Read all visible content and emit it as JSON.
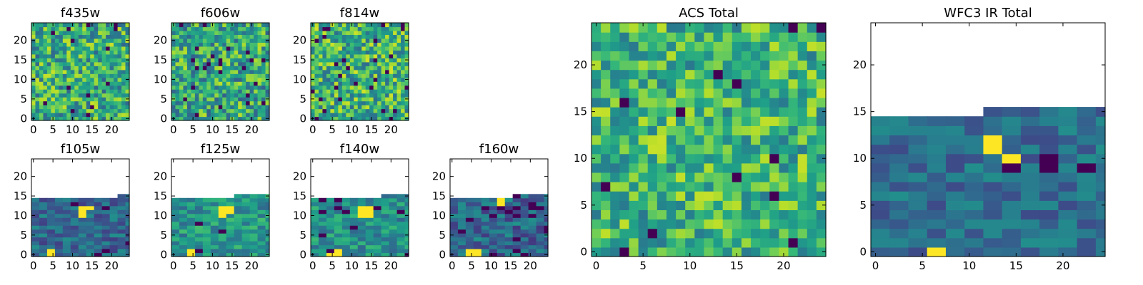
{
  "figure": {
    "colormap": "viridis"
  },
  "chart_data": [
    {
      "type": "heatmap",
      "title": "f435w",
      "xticks": [
        0,
        5,
        10,
        15,
        20
      ],
      "yticks": [
        0,
        5,
        10,
        15,
        20
      ],
      "xlim": [
        0,
        25
      ],
      "ylim": [
        0,
        25
      ],
      "data_rows": 25,
      "cols": 25,
      "cell": 1,
      "seed": 11,
      "mean": 0.62,
      "spread": 0.3,
      "dark_prob": 0.03
    },
    {
      "type": "heatmap",
      "title": "f606w",
      "xticks": [
        0,
        5,
        10,
        15,
        20
      ],
      "yticks": [
        0,
        5,
        10,
        15,
        20
      ],
      "xlim": [
        0,
        25
      ],
      "ylim": [
        0,
        25
      ],
      "data_rows": 25,
      "cols": 25,
      "cell": 1,
      "seed": 23,
      "mean": 0.6,
      "spread": 0.3,
      "dark_prob": 0.035
    },
    {
      "type": "heatmap",
      "title": "f814w",
      "xticks": [
        0,
        5,
        10,
        15,
        20
      ],
      "yticks": [
        0,
        5,
        10,
        15,
        20
      ],
      "xlim": [
        0,
        25
      ],
      "ylim": [
        0,
        25
      ],
      "data_rows": 25,
      "cols": 25,
      "cell": 1,
      "seed": 37,
      "mean": 0.64,
      "spread": 0.3,
      "dark_prob": 0.04
    },
    {
      "type": "heatmap",
      "title": "f105w",
      "xticks": [
        0,
        5,
        10,
        15,
        20
      ],
      "yticks": [
        0,
        5,
        10,
        15,
        20
      ],
      "xlim": [
        0,
        25
      ],
      "ylim": [
        0,
        25
      ],
      "data_rows": 15,
      "cols": 25,
      "cell": 2,
      "seed": 41,
      "mean": 0.34,
      "spread": 0.16,
      "dark_prob": 0.04,
      "step": [
        [
          21,
          1
        ]
      ],
      "hot": [
        [
          0,
          5
        ],
        [
          11,
          13
        ]
      ]
    },
    {
      "type": "heatmap",
      "title": "f125w",
      "xticks": [
        0,
        5,
        10,
        15,
        20
      ],
      "yticks": [
        0,
        5,
        10,
        15,
        20
      ],
      "xlim": [
        0,
        25
      ],
      "ylim": [
        0,
        25
      ],
      "data_rows": 15,
      "cols": 25,
      "cell": 2,
      "seed": 53,
      "mean": 0.52,
      "spread": 0.18,
      "dark_prob": 0.03,
      "step": [
        [
          15,
          1
        ],
        [
          23,
          1
        ]
      ],
      "hot": [
        [
          0,
          5
        ],
        [
          11,
          13
        ]
      ]
    },
    {
      "type": "heatmap",
      "title": "f140w",
      "xticks": [
        0,
        5,
        10,
        15,
        20
      ],
      "yticks": [
        0,
        5,
        10,
        15,
        20
      ],
      "xlim": [
        0,
        25
      ],
      "ylim": [
        0,
        25
      ],
      "data_rows": 15,
      "cols": 25,
      "cell": 2,
      "seed": 67,
      "mean": 0.5,
      "spread": 0.18,
      "dark_prob": 0.03,
      "step": [
        [
          17,
          1
        ]
      ],
      "hot": [
        [
          0,
          5
        ],
        [
          11,
          13
        ]
      ]
    },
    {
      "type": "heatmap",
      "title": "f160w",
      "xticks": [
        0,
        5,
        10,
        15,
        20
      ],
      "yticks": [
        0,
        5,
        10,
        15,
        20
      ],
      "xlim": [
        0,
        25
      ],
      "ylim": [
        0,
        25
      ],
      "data_rows": 15,
      "cols": 25,
      "cell": 2,
      "seed": 79,
      "mean": 0.34,
      "spread": 0.18,
      "dark_prob": 0.08,
      "step": [
        [
          15,
          1
        ]
      ],
      "hot": [
        [
          0,
          5
        ],
        [
          13,
          13
        ]
      ]
    },
    {
      "type": "heatmap",
      "title": "ACS Total",
      "xticks": [
        0,
        5,
        10,
        15,
        20
      ],
      "yticks": [
        0,
        5,
        10,
        15,
        20
      ],
      "xlim": [
        0,
        25
      ],
      "ylim": [
        0,
        25
      ],
      "data_rows": 25,
      "cols": 25,
      "cell": 1,
      "seed": 91,
      "mean": 0.66,
      "spread": 0.26,
      "dark_prob": 0.025
    },
    {
      "type": "heatmap",
      "title": "WFC3 IR Total",
      "xticks": [
        0,
        5,
        10,
        15,
        20
      ],
      "yticks": [
        0,
        5,
        10,
        15,
        20
      ],
      "xlim": [
        0,
        25
      ],
      "ylim": [
        0,
        25
      ],
      "data_rows": 15,
      "cols": 25,
      "cell": 2,
      "seed": 103,
      "mean": 0.36,
      "spread": 0.14,
      "dark_prob": 0.02,
      "step": [
        [
          11,
          1
        ],
        [
          21,
          1
        ]
      ],
      "hot": [
        [
          0,
          5
        ],
        [
          11,
          13
        ]
      ]
    }
  ]
}
